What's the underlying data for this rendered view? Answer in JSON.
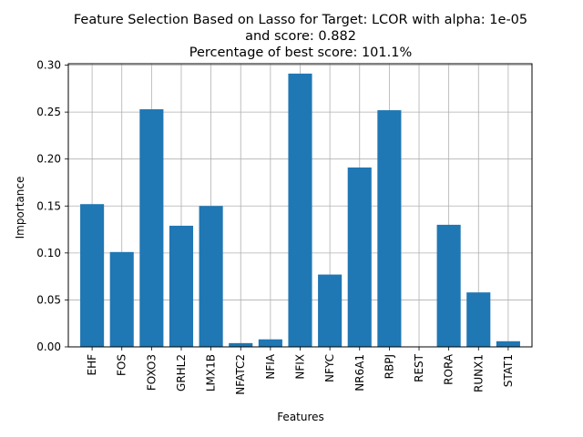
{
  "chart_data": {
    "type": "bar",
    "title_lines": [
      "Feature Selection Based on Lasso for Target: LCOR with alpha: 1e-05",
      "and score: 0.882",
      "Percentage of best score: 101.1%"
    ],
    "xlabel": "Features",
    "ylabel": "Importance",
    "categories": [
      "EHF",
      "FOS",
      "FOXO3",
      "GRHL2",
      "LMX1B",
      "NFATC2",
      "NFIA",
      "NFIX",
      "NFYC",
      "NR6A1",
      "RBPJ",
      "REST",
      "RORA",
      "RUNX1",
      "STAT1"
    ],
    "values": [
      0.152,
      0.101,
      0.253,
      0.129,
      0.15,
      0.004,
      0.008,
      0.291,
      0.077,
      0.191,
      0.252,
      0.0,
      0.13,
      0.058,
      0.006
    ],
    "ylim": [
      0,
      0.3015
    ],
    "yticks": [
      "0.00",
      "0.05",
      "0.10",
      "0.15",
      "0.20",
      "0.25",
      "0.30"
    ],
    "ytick_values": [
      0,
      0.05,
      0.1,
      0.15,
      0.2,
      0.25,
      0.3
    ],
    "grid": true,
    "bar_color": "#1f77b4"
  }
}
